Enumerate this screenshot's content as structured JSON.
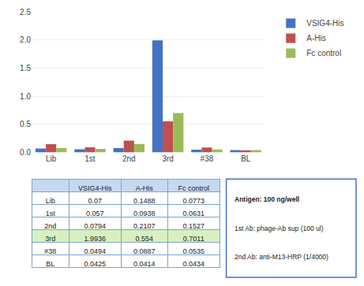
{
  "chart_data": {
    "type": "bar",
    "categories": [
      "Lib",
      "1st",
      "2nd",
      "3rd",
      "#38",
      "BL"
    ],
    "series": [
      {
        "name": "VSIG4-His",
        "color": "#4472C4",
        "values": [
          0.07,
          0.057,
          0.0794,
          1.9936,
          0.0494,
          0.0425
        ]
      },
      {
        "name": "A-His",
        "color": "#C0504D",
        "values": [
          0.1488,
          0.0938,
          0.2107,
          0.554,
          0.0887,
          0.0414
        ]
      },
      {
        "name": "Fc control",
        "color": "#9BBB59",
        "values": [
          0.0773,
          0.0631,
          0.1527,
          0.7011,
          0.0535,
          0.0434
        ]
      }
    ],
    "ylim": [
      0,
      2.5
    ],
    "yticks": [
      {
        "value": 0,
        "label": "0.0"
      },
      {
        "value": 0.5,
        "label": "0.5"
      },
      {
        "value": 1,
        "label": "1.0"
      },
      {
        "value": 1.5,
        "label": "1.5"
      },
      {
        "value": 2,
        "label": "2.0"
      },
      {
        "value": 2.5,
        "label": "2.5"
      }
    ],
    "grid": true,
    "legend": "right",
    "table": {
      "columns": [
        "VSIG4-His",
        "A-His",
        "Fc control"
      ],
      "rows": [
        [
          "Lib",
          "0.07",
          "0.1488",
          "0.0773"
        ],
        [
          "1st",
          "0.057",
          "0.0938",
          "0.0631"
        ],
        [
          "2nd",
          "0.0794",
          "0.2107",
          "0.1527"
        ],
        [
          "3rd",
          "1.9936",
          "0.554",
          "0.7011"
        ],
        [
          "#38",
          "0.0494",
          "0.0887",
          "0.0535"
        ],
        [
          "BL",
          "0.0425",
          "0.0414",
          "0.0434"
        ]
      ],
      "colors": [
        "#FFFFFF",
        "#FFFFFF",
        "#FFFFFF",
        "#D8F0C0",
        "#FFFFFF",
        "#FFFFFF"
      ]
    },
    "annotations": [
      "Antigen: 100 ng/well",
      "1st Ab: phage-Ab sup (100 ul)",
      "2nd Ab: anti-M13-HRP (1/4000)"
    ]
  }
}
